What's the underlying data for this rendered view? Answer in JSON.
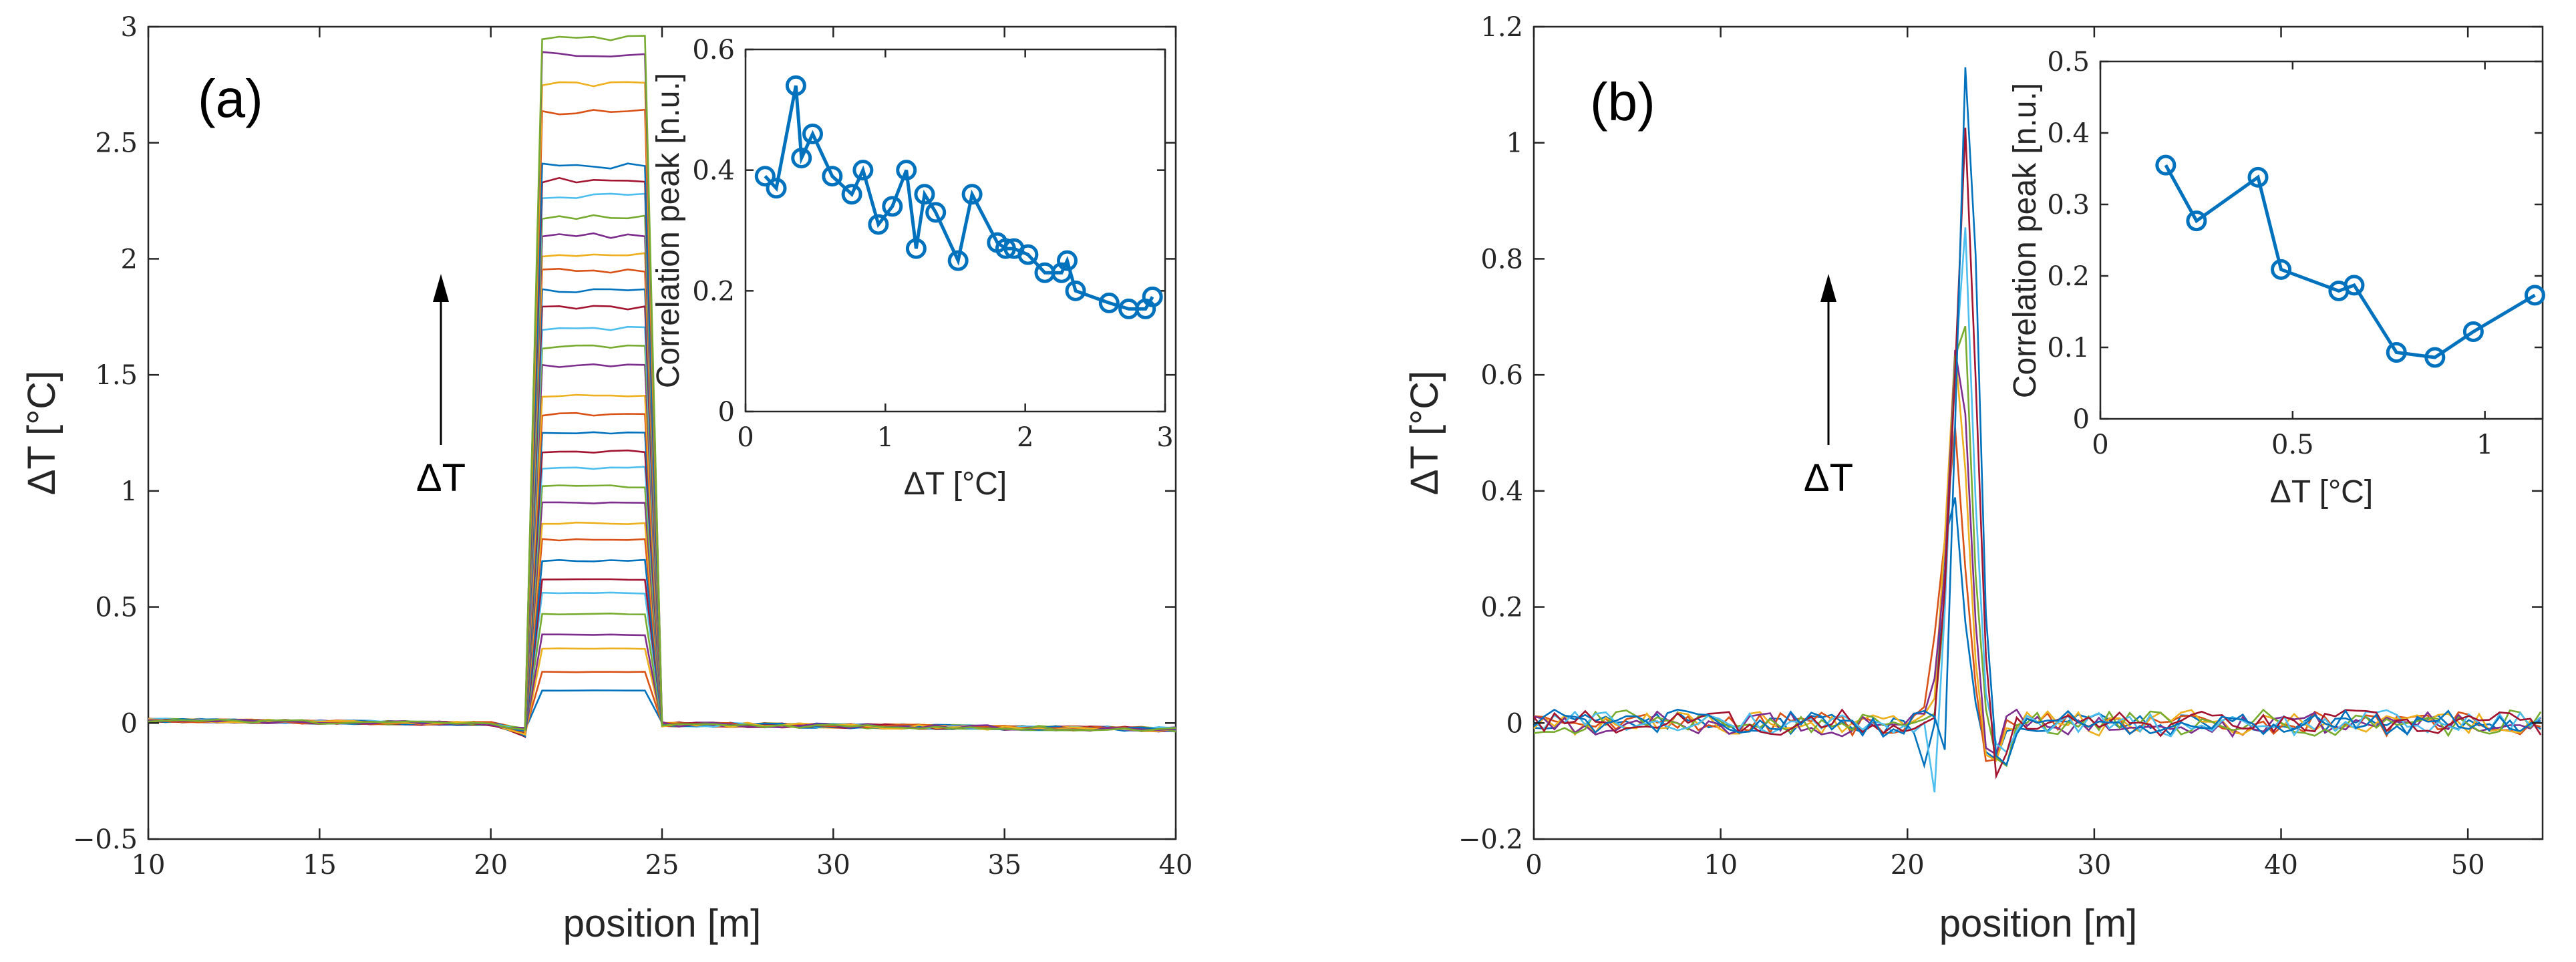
{
  "chart_data": [
    {
      "id": "a",
      "type": "line",
      "panel_label": "(a)",
      "xlabel": "position [m]",
      "ylabel": "ΔT  [°C]",
      "xlim": [
        10,
        40
      ],
      "ylim": [
        -0.5,
        3
      ],
      "xticks": [
        10,
        15,
        20,
        25,
        30,
        35,
        40
      ],
      "xtick_labels": [
        "10",
        "15",
        "20",
        "25",
        "30",
        "35",
        "40"
      ],
      "yticks": [
        -0.5,
        0,
        0.5,
        1,
        1.5,
        2,
        2.5,
        3
      ],
      "ytick_labels": [
        "−0.5",
        "0",
        "0.5",
        "1",
        "1.5",
        "2",
        "2.5",
        "3"
      ],
      "annotation": "ΔT",
      "series_plateau_temperatures": [
        0.14,
        0.22,
        0.32,
        0.38,
        0.47,
        0.56,
        0.62,
        0.7,
        0.79,
        0.86,
        0.95,
        1.02,
        1.1,
        1.17,
        1.25,
        1.33,
        1.41,
        1.54,
        1.62,
        1.7,
        1.79,
        1.86,
        1.95,
        2.02,
        2.1,
        2.18,
        2.27,
        2.34,
        2.4,
        2.63,
        2.75,
        2.88,
        2.95
      ],
      "plateau_x_range": [
        21.3,
        24.5
      ],
      "inset": {
        "type": "line",
        "xlabel": "ΔT [°C]",
        "ylabel": "Correlation peak  [n.u.]",
        "xlim": [
          0,
          3
        ],
        "ylim": [
          0,
          0.6
        ],
        "xticks": [
          0,
          1,
          2,
          3
        ],
        "xtick_labels": [
          "0",
          "1",
          "2",
          "3"
        ],
        "yticks": [
          0,
          0.2,
          0.4,
          0.6
        ],
        "ytick_labels": [
          "0",
          "0.2",
          "0.4",
          "0.6"
        ],
        "x": [
          0.14,
          0.22,
          0.36,
          0.4,
          0.48,
          0.62,
          0.76,
          0.84,
          0.95,
          1.05,
          1.15,
          1.22,
          1.28,
          1.36,
          1.52,
          1.62,
          1.8,
          1.86,
          1.92,
          2.02,
          2.14,
          2.26,
          2.3,
          2.36,
          2.6,
          2.74,
          2.86,
          2.91
        ],
        "y": [
          0.39,
          0.37,
          0.54,
          0.42,
          0.46,
          0.39,
          0.36,
          0.4,
          0.31,
          0.34,
          0.4,
          0.27,
          0.36,
          0.33,
          0.25,
          0.36,
          0.28,
          0.27,
          0.27,
          0.26,
          0.23,
          0.23,
          0.25,
          0.2,
          0.18,
          0.17,
          0.17,
          0.19
        ]
      }
    },
    {
      "id": "b",
      "type": "line",
      "panel_label": "(b)",
      "xlabel": "position  [m]",
      "ylabel": "ΔT  [°C]",
      "xlim": [
        0,
        54
      ],
      "ylim": [
        -0.2,
        1.2
      ],
      "xticks": [
        0,
        10,
        20,
        30,
        40,
        50
      ],
      "xtick_labels": [
        "0",
        "10",
        "20",
        "30",
        "40",
        "50"
      ],
      "yticks": [
        -0.2,
        0,
        0.2,
        0.4,
        0.6,
        0.8,
        1,
        1.2
      ],
      "ytick_labels": [
        "−0.2",
        "0",
        "0.2",
        "0.4",
        "0.6",
        "0.8",
        "1",
        "1.2"
      ],
      "annotation": "ΔT",
      "series_peak_temperatures": [
        0.4,
        0.51,
        0.65,
        0.7,
        0.77,
        0.87,
        1.02,
        1.14
      ],
      "peak_x": 22.8,
      "inset": {
        "type": "line",
        "xlabel": "ΔT [°C]",
        "ylabel": "Correlation peak  [n.u.]",
        "xlim": [
          0,
          1.15
        ],
        "ylim": [
          0,
          0.5
        ],
        "xticks": [
          0,
          0.5,
          1
        ],
        "xtick_labels": [
          "0",
          "0.5",
          "1"
        ],
        "yticks": [
          0,
          0.1,
          0.2,
          0.3,
          0.4,
          0.5
        ],
        "ytick_labels": [
          "0",
          "0.1",
          "0.2",
          "0.3",
          "0.4",
          "0.5"
        ],
        "x": [
          0.17,
          0.25,
          0.41,
          0.47,
          0.62,
          0.66,
          0.77,
          0.87,
          0.97,
          1.13
        ],
        "y": [
          0.355,
          0.277,
          0.338,
          0.209,
          0.179,
          0.187,
          0.093,
          0.086,
          0.122,
          0.173
        ]
      }
    }
  ],
  "colors": {
    "palette": [
      "#0072BD",
      "#D95319",
      "#EDB120",
      "#7E2F8E",
      "#77AC30",
      "#4DBEEE",
      "#A2142F"
    ],
    "inset_line": "#0072BD",
    "axis": "#262626"
  }
}
